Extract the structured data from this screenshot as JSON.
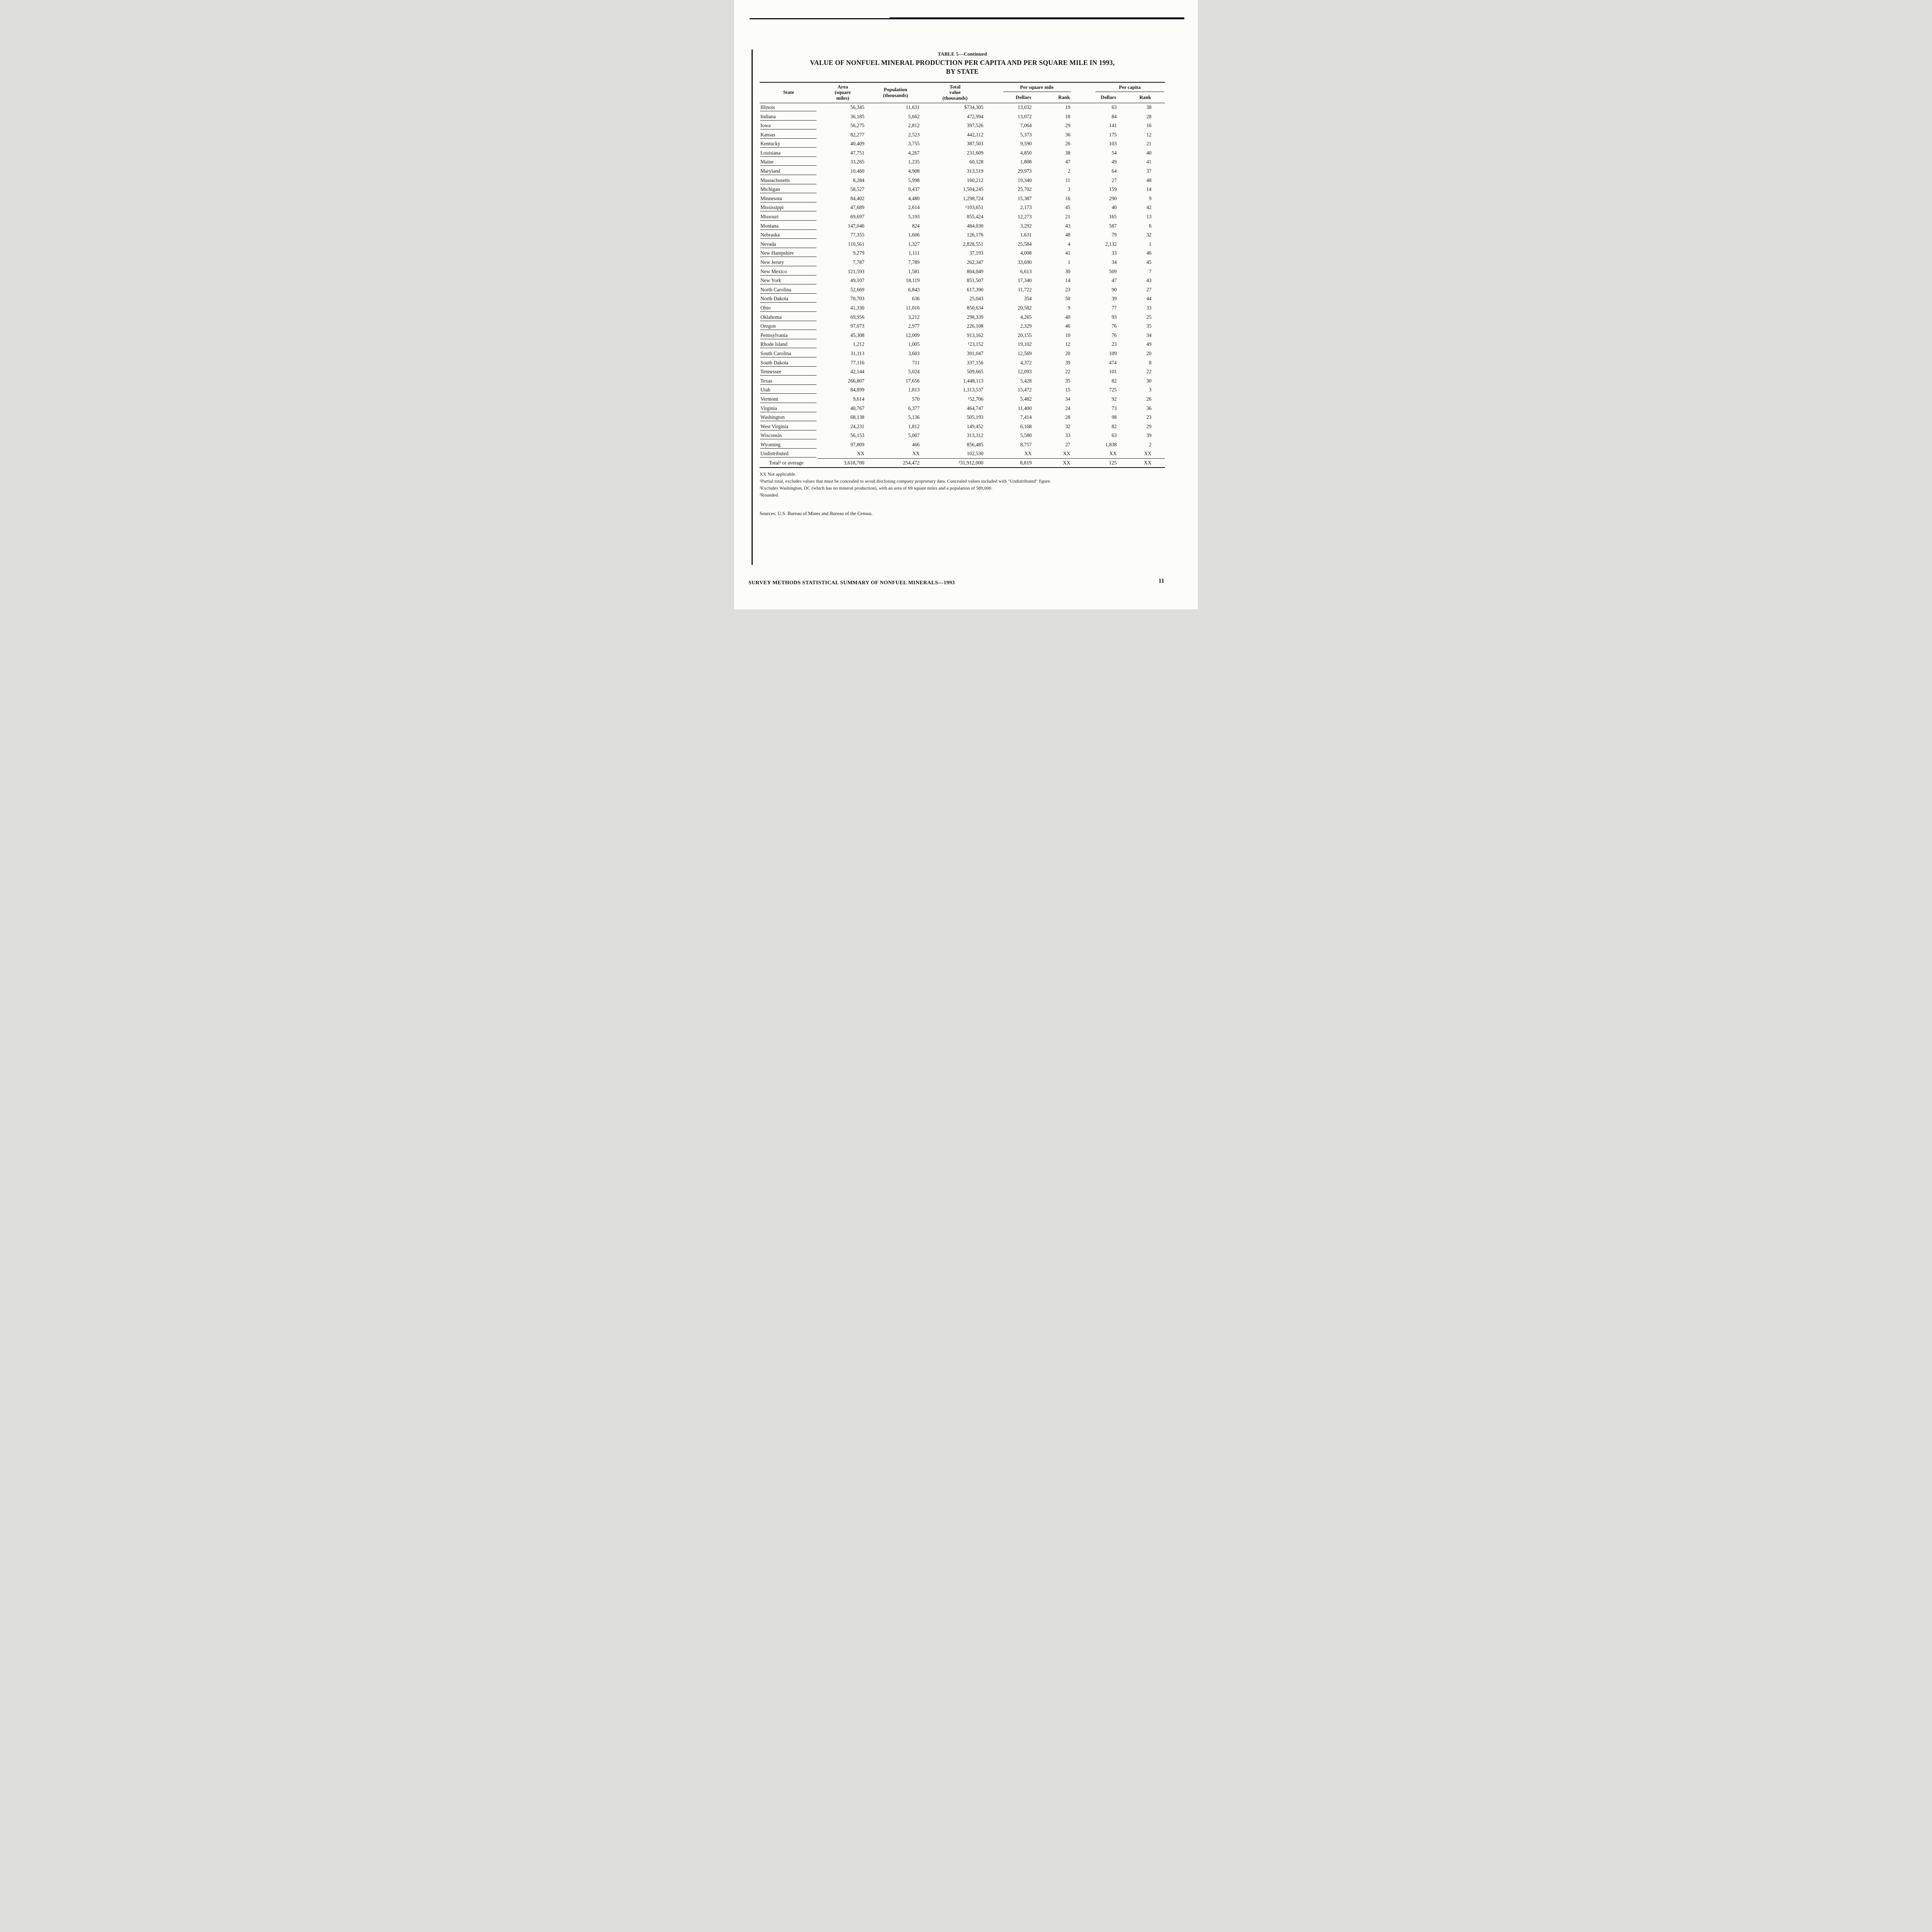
{
  "page": {
    "table_label": "TABLE 5—Continued",
    "title_line1": "VALUE OF NONFUEL MINERAL PRODUCTION PER CAPITA AND PER SQUARE MILE IN 1993,",
    "title_line2": "BY STATE",
    "footer": "SURVEY METHODS STATISTICAL SUMMARY OF NONFUEL MINERALS—1993",
    "page_number": "11"
  },
  "table": {
    "col_headers": {
      "state": "State",
      "area_lines": [
        "Area",
        "(square",
        "miles)"
      ],
      "population_lines": [
        "Population",
        "(thousands)"
      ],
      "total_lines": [
        "Total",
        "value",
        "(thousands)"
      ],
      "per_square_mile": "Per square mile",
      "per_capita": "Per capita",
      "psm_dollars": "Dollars",
      "psm_rank": "Rank",
      "pc_dollars": "Dollars",
      "pc_rank": "Rank"
    },
    "rows": [
      {
        "type": "state",
        "state": "Illinois",
        "area": "56,345",
        "population": "11,631",
        "total_value": "$734,305",
        "psm_dollars": "13,032",
        "psm_rank": "19",
        "pc_dollars": "63",
        "pc_rank": "38"
      },
      {
        "type": "state",
        "state": "Indiana",
        "area": "36,185",
        "population": "5,662",
        "total_value": "472,994",
        "psm_dollars": "13,072",
        "psm_rank": "18",
        "pc_dollars": "84",
        "pc_rank": "28"
      },
      {
        "type": "state",
        "state": "Iowa",
        "area": "56,275",
        "population": "2,812",
        "total_value": "397,526",
        "psm_dollars": "7,064",
        "psm_rank": "29",
        "pc_dollars": "141",
        "pc_rank": "16"
      },
      {
        "type": "state",
        "state": "Kansas",
        "area": "82,277",
        "population": "2,523",
        "total_value": "442,112",
        "psm_dollars": "5,373",
        "psm_rank": "36",
        "pc_dollars": "175",
        "pc_rank": "12"
      },
      {
        "type": "state",
        "state": "Kentucky",
        "area": "40,409",
        "population": "3,755",
        "total_value": "387,503",
        "psm_dollars": "9,590",
        "psm_rank": "26",
        "pc_dollars": "103",
        "pc_rank": "21"
      },
      {
        "type": "state",
        "state": "Louisiana",
        "area": "47,751",
        "population": "4,267",
        "total_value": "231,609",
        "psm_dollars": "4,850",
        "psm_rank": "38",
        "pc_dollars": "54",
        "pc_rank": "40"
      },
      {
        "type": "state",
        "state": "Maine",
        "area": "33,265",
        "population": "1,235",
        "total_value": "60,128",
        "psm_dollars": "1,808",
        "psm_rank": "47",
        "pc_dollars": "49",
        "pc_rank": "41"
      },
      {
        "type": "state",
        "state": "Maryland",
        "area": "10,460",
        "population": "4,908",
        "total_value": "313,519",
        "psm_dollars": "29,973",
        "psm_rank": "2",
        "pc_dollars": "64",
        "pc_rank": "37"
      },
      {
        "type": "state",
        "state": "Massachusetts",
        "area": "8,284",
        "population": "5,998",
        "total_value": "160,212",
        "psm_dollars": "19,340",
        "psm_rank": "11",
        "pc_dollars": "27",
        "pc_rank": "48"
      },
      {
        "type": "state",
        "state": "Michigan",
        "area": "58,527",
        "population": "9,437",
        "total_value": "1,504,245",
        "psm_dollars": "25,702",
        "psm_rank": "3",
        "pc_dollars": "159",
        "pc_rank": "14"
      },
      {
        "type": "state",
        "state": "Minnesota",
        "area": "84,402",
        "population": "4,480",
        "total_value": "1,298,724",
        "psm_dollars": "15,387",
        "psm_rank": "16",
        "pc_dollars": "290",
        "pc_rank": "9"
      },
      {
        "type": "state",
        "state": "Mississippi",
        "area": "47,689",
        "population": "2,614",
        "total_value": "¹103,651",
        "psm_dollars": "2,173",
        "psm_rank": "45",
        "pc_dollars": "40",
        "pc_rank": "42"
      },
      {
        "type": "state",
        "state": "Missouri",
        "area": "69,697",
        "population": "5,193",
        "total_value": "855,424",
        "psm_dollars": "12,273",
        "psm_rank": "21",
        "pc_dollars": "165",
        "pc_rank": "13"
      },
      {
        "type": "state",
        "state": "Montana",
        "area": "147,046",
        "population": "824",
        "total_value": "484,030",
        "psm_dollars": "3,292",
        "psm_rank": "43",
        "pc_dollars": "587",
        "pc_rank": "6"
      },
      {
        "type": "state",
        "state": "Nebraska",
        "area": "77,355",
        "population": "1,606",
        "total_value": "126,176",
        "psm_dollars": "1,631",
        "psm_rank": "48",
        "pc_dollars": "79",
        "pc_rank": "32"
      },
      {
        "type": "state",
        "state": "Nevada",
        "area": "110,561",
        "population": "1,327",
        "total_value": "2,828,551",
        "psm_dollars": "25,584",
        "psm_rank": "4",
        "pc_dollars": "2,132",
        "pc_rank": "1"
      },
      {
        "type": "state",
        "state": "New Hampshire",
        "area": "9,279",
        "population": "1,111",
        "total_value": "37,193",
        "psm_dollars": "4,008",
        "psm_rank": "41",
        "pc_dollars": "33",
        "pc_rank": "46"
      },
      {
        "type": "state",
        "state": "New Jersey",
        "area": "7,787",
        "population": "7,789",
        "total_value": "262,347",
        "psm_dollars": "33,690",
        "psm_rank": "1",
        "pc_dollars": "34",
        "pc_rank": "45"
      },
      {
        "type": "state",
        "state": "New Mexico",
        "area": "121,593",
        "population": "1,581",
        "total_value": "804,049",
        "psm_dollars": "6,613",
        "psm_rank": "30",
        "pc_dollars": "509",
        "pc_rank": "7"
      },
      {
        "type": "state",
        "state": "New York",
        "area": "49,107",
        "population": "18,119",
        "total_value": "851,507",
        "psm_dollars": "17,340",
        "psm_rank": "14",
        "pc_dollars": "47",
        "pc_rank": "43"
      },
      {
        "type": "state",
        "state": "North Carolina",
        "area": "52,669",
        "population": "6,843",
        "total_value": "617,390",
        "psm_dollars": "11,722",
        "psm_rank": "23",
        "pc_dollars": "90",
        "pc_rank": "27"
      },
      {
        "type": "state",
        "state": "North Dakota",
        "area": "70,703",
        "population": "636",
        "total_value": "25,043",
        "psm_dollars": "354",
        "psm_rank": "50",
        "pc_dollars": "39",
        "pc_rank": "44"
      },
      {
        "type": "state",
        "state": "Ohio",
        "area": "41,330",
        "population": "11,016",
        "total_value": "850,634",
        "psm_dollars": "20,582",
        "psm_rank": "9",
        "pc_dollars": "77",
        "pc_rank": "33"
      },
      {
        "type": "state",
        "state": "Oklahoma",
        "area": "69,956",
        "population": "3,212",
        "total_value": "298,339",
        "psm_dollars": "4,265",
        "psm_rank": "40",
        "pc_dollars": "93",
        "pc_rank": "25"
      },
      {
        "type": "state",
        "state": "Oregon",
        "area": "97,073",
        "population": "2,977",
        "total_value": "226,108",
        "psm_dollars": "2,329",
        "psm_rank": "46",
        "pc_dollars": "76",
        "pc_rank": "35"
      },
      {
        "type": "state",
        "state": "Pennsylvania",
        "area": "45,308",
        "population": "12,009",
        "total_value": "913,162",
        "psm_dollars": "20,155",
        "psm_rank": "10",
        "pc_dollars": "76",
        "pc_rank": "34"
      },
      {
        "type": "state",
        "state": "Rhode Island",
        "area": "1,212",
        "population": "1,005",
        "total_value": "¹23,152",
        "psm_dollars": "19,102",
        "psm_rank": "12",
        "pc_dollars": "23",
        "pc_rank": "49"
      },
      {
        "type": "state",
        "state": "South Carolina",
        "area": "31,113",
        "population": "3,603",
        "total_value": "391,047",
        "psm_dollars": "12,569",
        "psm_rank": "20",
        "pc_dollars": "109",
        "pc_rank": "20"
      },
      {
        "type": "state",
        "state": "South Dakota",
        "area": "77,116",
        "population": "711",
        "total_value": "337,156",
        "psm_dollars": "4,372",
        "psm_rank": "39",
        "pc_dollars": "474",
        "pc_rank": "8"
      },
      {
        "type": "state",
        "state": "Tennessee",
        "area": "42,144",
        "population": "5,024",
        "total_value": "509,665",
        "psm_dollars": "12,093",
        "psm_rank": "22",
        "pc_dollars": "101",
        "pc_rank": "22"
      },
      {
        "type": "state",
        "state": "Texas",
        "area": "266,807",
        "population": "17,656",
        "total_value": "1,448,113",
        "psm_dollars": "5,428",
        "psm_rank": "35",
        "pc_dollars": "82",
        "pc_rank": "30"
      },
      {
        "type": "state",
        "state": "Utah",
        "area": "84,899",
        "population": "1,813",
        "total_value": "1,313,537",
        "psm_dollars": "15,472",
        "psm_rank": "15",
        "pc_dollars": "725",
        "pc_rank": "3"
      },
      {
        "type": "state",
        "state": "Vermont",
        "area": "9,614",
        "population": "570",
        "total_value": "¹52,706",
        "psm_dollars": "5,482",
        "psm_rank": "34",
        "pc_dollars": "92",
        "pc_rank": "26"
      },
      {
        "type": "state",
        "state": "Virginia",
        "area": "40,767",
        "population": "6,377",
        "total_value": "464,747",
        "psm_dollars": "11,400",
        "psm_rank": "24",
        "pc_dollars": "73",
        "pc_rank": "36"
      },
      {
        "type": "state",
        "state": "Washington",
        "area": "68,138",
        "population": "5,136",
        "total_value": "505,193",
        "psm_dollars": "7,414",
        "psm_rank": "28",
        "pc_dollars": "98",
        "pc_rank": "23"
      },
      {
        "type": "state",
        "state": "West Virginia",
        "area": "24,231",
        "population": "1,812",
        "total_value": "149,452",
        "psm_dollars": "6,168",
        "psm_rank": "32",
        "pc_dollars": "82",
        "pc_rank": "29"
      },
      {
        "type": "state",
        "state": "Wisconsin",
        "area": "56,153",
        "population": "5,007",
        "total_value": "313,312",
        "psm_dollars": "5,580",
        "psm_rank": "33",
        "pc_dollars": "63",
        "pc_rank": "39"
      },
      {
        "type": "state",
        "state": "Wyoming",
        "area": "97,809",
        "population": "466",
        "total_value": "856,485",
        "psm_dollars": "8,757",
        "psm_rank": "27",
        "pc_dollars": "1,838",
        "pc_rank": "2"
      },
      {
        "type": "undistributed",
        "state": "Undistributed",
        "area": "XX",
        "population": "XX",
        "total_value": "102,530",
        "psm_dollars": "XX",
        "psm_rank": "XX",
        "pc_dollars": "XX",
        "pc_rank": "XX"
      },
      {
        "type": "total",
        "state": "Total² or average",
        "area": "3,618,700",
        "population": "254,472",
        "total_value": "³31,912,000",
        "psm_dollars": "8,819",
        "psm_rank": "XX",
        "pc_dollars": "125",
        "pc_rank": "XX"
      }
    ]
  },
  "footnotes": [
    "XX Not applicable.",
    "¹Partial total, excludes values that must be concealed to avoid disclosing company proprietary data. Concealed values included with \"Undistributed\" figure.",
    "²Excludes Washington, DC (which has no mineral production), with an area of 69 square miles and a population of 589,000.",
    "³Rounded."
  ],
  "sources": "Sources: U.S. Bureau of Mines and Bureau of the Census."
}
